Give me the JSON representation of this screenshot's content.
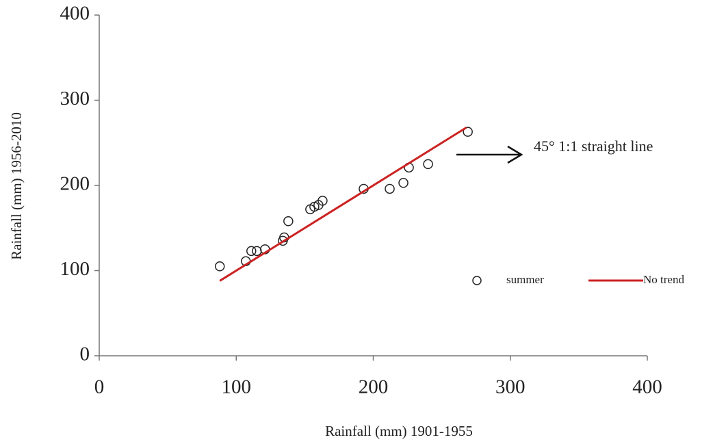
{
  "chart_data": {
    "type": "scatter",
    "x_label": "Rainfall  (mm)  1901-1955",
    "y_label": "Rainfall  (mm)  1956-2010",
    "annotation": "45° 1:1 straight line",
    "xlim": [
      0,
      400
    ],
    "xticks": [
      0,
      100,
      200,
      300,
      400
    ],
    "ylim": [
      0,
      400
    ],
    "yticks": [
      0,
      100,
      200,
      300,
      400
    ],
    "grid": false,
    "legend": "right",
    "series": [
      {
        "name": "summer",
        "type": "scatter",
        "color": "#222222",
        "x": [
          88,
          107,
          111,
          115,
          121,
          134,
          135,
          138,
          154,
          157,
          160,
          163,
          193,
          212,
          222,
          226,
          240,
          269
        ],
        "values": [
          105,
          111,
          123,
          123,
          125,
          135,
          139,
          158,
          172,
          175,
          177,
          182,
          196,
          196,
          203,
          221,
          225,
          263
        ]
      },
      {
        "name": "No trend",
        "type": "line",
        "color": "#cc2222",
        "x": [
          88,
          268
        ],
        "values": [
          88,
          268
        ]
      }
    ]
  }
}
